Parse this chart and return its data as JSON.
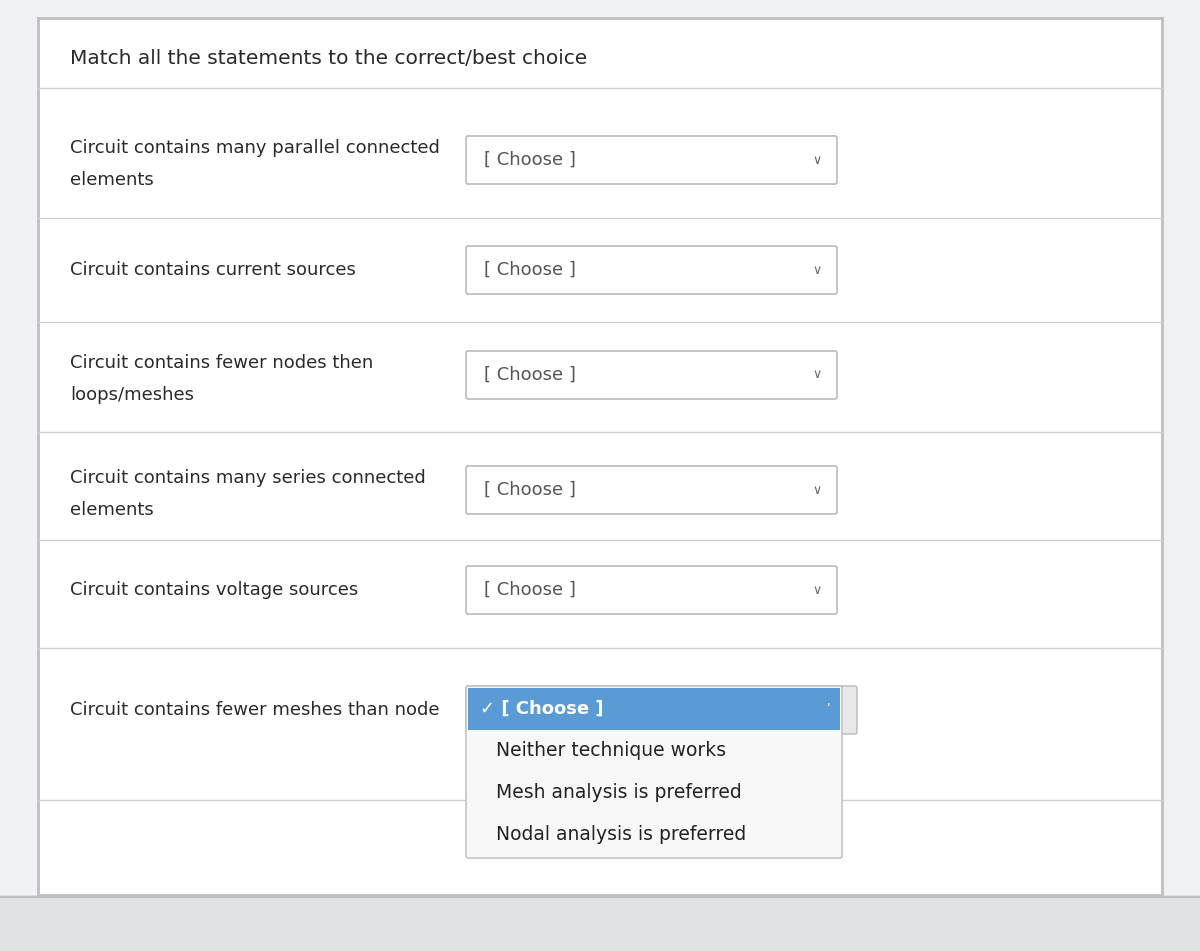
{
  "title": "Match all the statements to the correct/best choice",
  "background_color": "#f0f2f5",
  "panel_color": "#ffffff",
  "border_color": "#d0d0d0",
  "left_border_color": "#c0c0c0",
  "rows": [
    {
      "label_line1": "Circuit contains many parallel connected",
      "label_line2": "elements",
      "dropdown_text": "[ Choose ]",
      "highlighted": false
    },
    {
      "label_line1": "Circuit contains current sources",
      "label_line2": "",
      "dropdown_text": "[ Choose ]",
      "highlighted": false
    },
    {
      "label_line1": "Circuit contains fewer nodes then",
      "label_line2": "loops/meshes",
      "dropdown_text": "[ Choose ]",
      "highlighted": false
    },
    {
      "label_line1": "Circuit contains many series connected",
      "label_line2": "elements",
      "dropdown_text": "[ Choose ]",
      "highlighted": false
    },
    {
      "label_line1": "Circuit contains voltage sources",
      "label_line2": "",
      "dropdown_text": "[ Choose ]",
      "highlighted": false
    },
    {
      "label_line1": "Circuit contains fewer meshes than node",
      "label_line2": "",
      "dropdown_text": "✓ [ Choose ]",
      "highlighted": true
    }
  ],
  "dropdown_options": [
    "Neither technique works",
    "Mesh analysis is preferred",
    "Nodal analysis is preferred"
  ],
  "dropdown_highlight_color": "#5b9bd5",
  "dropdown_highlight_text_color": "#ffffff",
  "dropdown_option_color": "#f8f8f8",
  "dropdown_option_text_color": "#222222",
  "dropdown_border_color": "#bbbbbb",
  "text_color": "#2a2a2a",
  "title_color": "#2a2a2a",
  "title_fontsize": 14.5,
  "label_fontsize": 13,
  "dropdown_fontsize": 13,
  "option_fontsize": 13.5,
  "chevron_char": "∨"
}
